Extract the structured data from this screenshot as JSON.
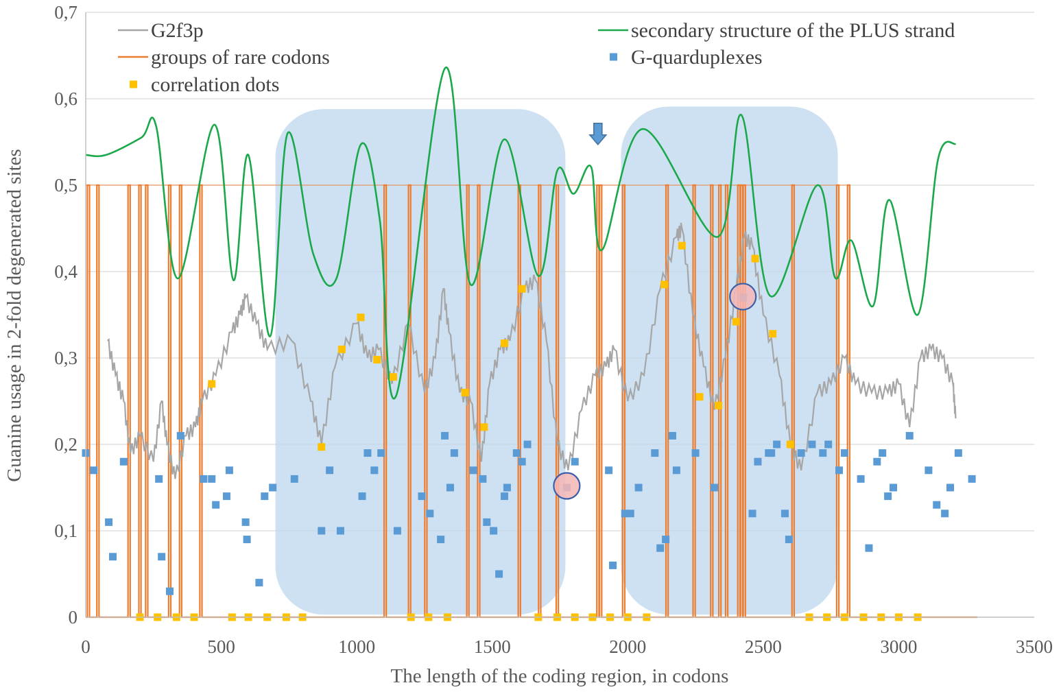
{
  "chart_data": {
    "type": "line",
    "title": "",
    "xlabel": "The length of the coding region, in codons",
    "ylabel": "Guanine usage in 2-fold degenerated sites",
    "xlim": [
      0,
      3500
    ],
    "ylim": [
      0,
      0.7
    ],
    "x_ticks": [
      "0",
      "500",
      "1000",
      "1500",
      "2000",
      "2500",
      "3000",
      "3500"
    ],
    "y_ticks": [
      "0",
      "0,1",
      "0,2",
      "0,3",
      "0,4",
      "0,5",
      "0,6",
      "0,7"
    ],
    "grid": "horizontal",
    "legend_position": "top",
    "colors": {
      "g2f3p": "#a6a6a6",
      "secondary": "#1aa84a",
      "rare": "#ed7d31",
      "gquad": "#5b9bd5",
      "corr": "#ffc000",
      "region": "#bdd7ee",
      "circle_fill": "#f4b6b6",
      "circle_stroke": "#3b5ea8",
      "arrow": "#5b9bd5"
    },
    "legend": [
      {
        "key": "g2f3p",
        "label": "G2f3p",
        "marker": "line"
      },
      {
        "key": "secondary",
        "label": "secondary structure of the PLUS strand",
        "marker": "line"
      },
      {
        "key": "rare",
        "label": "groups of rare codons",
        "marker": "line"
      },
      {
        "key": "gquad",
        "label": "G-quarduplexes",
        "marker": "square"
      },
      {
        "key": "corr",
        "label": "correlation dots",
        "marker": "square"
      }
    ],
    "shaded_regions": [
      {
        "x0": 700,
        "x1": 1770,
        "y0": 0.003,
        "y1": 0.588
      },
      {
        "x0": 1975,
        "x1": 2775,
        "y0": 0.003,
        "y1": 0.591
      }
    ],
    "arrow_marker": {
      "x": 1890,
      "y": 0.52
    },
    "highlight_circles": [
      {
        "x": 1775,
        "y": 0.152
      },
      {
        "x": 2425,
        "y": 0.371
      }
    ],
    "rare_codon_groups": {
      "low": 0,
      "high": 0.5,
      "x": [
        10,
        45,
        160,
        200,
        225,
        310,
        350,
        425,
        1105,
        1195,
        1255,
        1410,
        1450,
        1600,
        1675,
        1740,
        1890,
        1900,
        1985,
        2145,
        2245,
        2310,
        2340,
        2365,
        2410,
        2420,
        2430,
        2610,
        2775,
        2815
      ]
    },
    "secondary_structure": {
      "x": [
        0,
        75,
        205,
        260,
        340,
        475,
        545,
        600,
        680,
        745,
        840,
        925,
        1015,
        1085,
        1145,
        1325,
        1420,
        1545,
        1670,
        1740,
        1800,
        1865,
        1905,
        2055,
        2330,
        2420,
        2525,
        2700,
        2765,
        2825,
        2905,
        2965,
        3070,
        3145,
        3210
      ],
      "y": [
        0.535,
        0.535,
        0.555,
        0.568,
        0.392,
        0.57,
        0.39,
        0.535,
        0.325,
        0.56,
        0.42,
        0.392,
        0.547,
        0.46,
        0.256,
        0.635,
        0.385,
        0.553,
        0.395,
        0.517,
        0.49,
        0.521,
        0.425,
        0.565,
        0.44,
        0.581,
        0.372,
        0.5,
        0.393,
        0.436,
        0.36,
        0.483,
        0.35,
        0.53,
        0.548
      ]
    },
    "g2f3p": {
      "x": [
        80,
        110,
        140,
        165,
        200,
        250,
        280,
        300,
        330,
        370,
        405,
        430,
        480,
        540,
        570,
        590,
        630,
        670,
        760,
        830,
        870,
        920,
        1000,
        1040,
        1080,
        1130,
        1190,
        1250,
        1290,
        1320,
        1340,
        1380,
        1420,
        1460,
        1490,
        1530,
        1565,
        1620,
        1660,
        1700,
        1740,
        1780,
        1830,
        1880,
        1920,
        1950,
        2000,
        2060,
        2120,
        2180,
        2200,
        2240,
        2280,
        2320,
        2360,
        2400,
        2430,
        2460,
        2500,
        2560,
        2600,
        2640,
        2700,
        2750,
        2800,
        2840,
        2900,
        2960,
        3000,
        3040,
        3080,
        3120,
        3160,
        3200,
        3210
      ],
      "y": [
        0.32,
        0.28,
        0.25,
        0.19,
        0.21,
        0.18,
        0.25,
        0.2,
        0.16,
        0.21,
        0.22,
        0.25,
        0.28,
        0.33,
        0.35,
        0.37,
        0.34,
        0.31,
        0.32,
        0.25,
        0.2,
        0.29,
        0.34,
        0.3,
        0.31,
        0.27,
        0.34,
        0.26,
        0.3,
        0.38,
        0.33,
        0.26,
        0.25,
        0.18,
        0.27,
        0.31,
        0.32,
        0.38,
        0.39,
        0.32,
        0.2,
        0.17,
        0.24,
        0.28,
        0.29,
        0.31,
        0.25,
        0.28,
        0.38,
        0.44,
        0.45,
        0.35,
        0.29,
        0.24,
        0.3,
        0.38,
        0.44,
        0.43,
        0.35,
        0.28,
        0.2,
        0.17,
        0.26,
        0.27,
        0.3,
        0.27,
        0.26,
        0.26,
        0.27,
        0.22,
        0.3,
        0.31,
        0.3,
        0.27,
        0.23
      ]
    },
    "g_quadruplexes": {
      "x": [
        0,
        30,
        85,
        100,
        140,
        270,
        280,
        310,
        350,
        435,
        465,
        480,
        520,
        530,
        590,
        595,
        640,
        660,
        690,
        770,
        870,
        900,
        940,
        1020,
        1040,
        1065,
        1090,
        1150,
        1240,
        1270,
        1310,
        1325,
        1345,
        1360,
        1430,
        1465,
        1480,
        1505,
        1525,
        1545,
        1555,
        1590,
        1610,
        1630,
        1775,
        1805,
        1930,
        1945,
        1990,
        2010,
        2040,
        2100,
        2120,
        2140,
        2165,
        2180,
        2250,
        2320,
        2425,
        2460,
        2480,
        2520,
        2530,
        2550,
        2580,
        2595,
        2640,
        2680,
        2720,
        2740,
        2780,
        2800,
        2860,
        2890,
        2920,
        2940,
        2960,
        2980,
        3040,
        3110,
        3140,
        3170,
        3190,
        3220,
        3270
      ],
      "y": [
        0.19,
        0.17,
        0.11,
        0.07,
        0.18,
        0.16,
        0.07,
        0.03,
        0.21,
        0.16,
        0.16,
        0.13,
        0.14,
        0.17,
        0.11,
        0.09,
        0.04,
        0.14,
        0.15,
        0.16,
        0.1,
        0.17,
        0.1,
        0.14,
        0.19,
        0.17,
        0.19,
        0.1,
        0.14,
        0.12,
        0.09,
        0.21,
        0.15,
        0.19,
        0.17,
        0.16,
        0.11,
        0.1,
        0.05,
        0.14,
        0.15,
        0.19,
        0.18,
        0.2,
        0.15,
        0.18,
        0.17,
        0.06,
        0.12,
        0.12,
        0.15,
        0.19,
        0.08,
        0.09,
        0.21,
        0.17,
        0.19,
        0.15,
        0.37,
        0.12,
        0.18,
        0.19,
        0.19,
        0.2,
        0.12,
        0.09,
        0.19,
        0.2,
        0.19,
        0.2,
        0.17,
        0.19,
        0.16,
        0.08,
        0.18,
        0.19,
        0.14,
        0.15,
        0.21,
        0.17,
        0.13,
        0.12,
        0.15,
        0.19,
        0.16
      ]
    },
    "correlation_dots": {
      "x": [
        200,
        265,
        335,
        400,
        465,
        540,
        600,
        670,
        740,
        800,
        870,
        945,
        1015,
        1075,
        1135,
        1200,
        1265,
        1335,
        1400,
        1470,
        1545,
        1610,
        1670,
        1740,
        1805,
        1870,
        1935,
        2000,
        2070,
        2135,
        2200,
        2265,
        2335,
        2400,
        2470,
        2535,
        2600,
        2670,
        2735,
        2800,
        2870,
        2935,
        3000,
        3070
      ],
      "y": [
        0,
        0,
        0,
        0,
        0.27,
        0,
        0,
        0,
        0,
        0,
        0.197,
        0.31,
        0.347,
        0.298,
        0.278,
        0,
        0,
        0,
        0.26,
        0.22,
        0.317,
        0.38,
        0,
        0,
        0,
        0,
        0,
        0,
        0,
        0.385,
        0.43,
        0.255,
        0.245,
        0.342,
        0.415,
        0.328,
        0.2,
        0,
        0,
        0,
        0,
        0,
        0,
        0
      ]
    }
  }
}
